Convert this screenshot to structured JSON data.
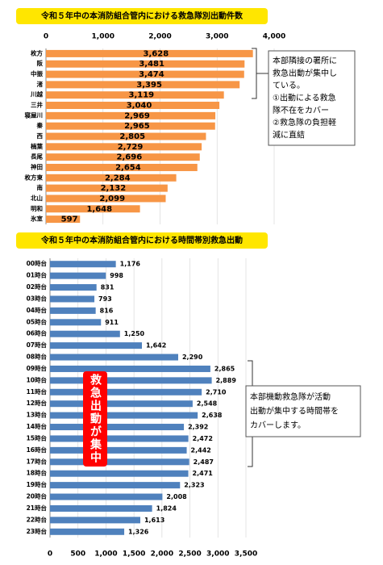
{
  "chart_data": [
    {
      "type": "bar",
      "orientation": "horizontal",
      "title": "令和５年中の本消防組合管内における救急隊別出動件数",
      "categories": [
        "枚方",
        "阪",
        "中振",
        "渚",
        "川越",
        "三井",
        "寝屋川",
        "秦",
        "西",
        "楠葉",
        "長尾",
        "神田",
        "枚方東",
        "南",
        "北山",
        "明和",
        "氷室"
      ],
      "values": [
        3628,
        3481,
        3474,
        3395,
        3119,
        3040,
        2969,
        2965,
        2805,
        2729,
        2696,
        2654,
        2284,
        2132,
        2099,
        1648,
        597
      ],
      "value_labels": [
        "3,628",
        "3,481",
        "3,474",
        "3,395",
        "3,119",
        "3,040",
        "2,969",
        "2,965",
        "2,805",
        "2,729",
        "2,696",
        "2,654",
        "2,284",
        "2,132",
        "2,099",
        "1,648",
        "597"
      ],
      "color": "#f79646",
      "xlim": [
        0,
        4000
      ],
      "xticks": [
        0,
        {
          "value": 1000,
          "label": "1,000"
        },
        {
          "value": 2000,
          "label": "2,000"
        },
        {
          "value": 3000,
          "label": "3,000"
        },
        {
          "value": 4000,
          "label": "4,000"
        }
      ],
      "grid": true,
      "annotation": [
        "本部隣接の署所に",
        "救急出動が集中し",
        "ている。",
        "①出動による救急",
        "隊不在をカバー",
        "②救急隊の負担軽",
        "減に直結"
      ]
    },
    {
      "type": "bar",
      "orientation": "horizontal",
      "title": "令和５年中の本消防組合管内における時間帯別救急出動",
      "categories": [
        "00時台",
        "01時台",
        "02時台",
        "03時台",
        "04時台",
        "05時台",
        "06時台",
        "07時台",
        "08時台",
        "09時台",
        "10時台",
        "11時台",
        "12時台",
        "13時台",
        "14時台",
        "15時台",
        "16時台",
        "17時台",
        "18時台",
        "19時台",
        "20時台",
        "21時台",
        "22時台",
        "23時台"
      ],
      "values": [
        1176,
        998,
        831,
        793,
        816,
        911,
        1250,
        1642,
        2290,
        2865,
        2889,
        2710,
        2548,
        2638,
        2392,
        2472,
        2442,
        2487,
        2471,
        2323,
        2008,
        1824,
        1613,
        1326
      ],
      "value_labels": [
        "1,176",
        "998",
        "831",
        "793",
        "816",
        "911",
        "1,250",
        "1,642",
        "2,290",
        "2,865",
        "2,889",
        "2,710",
        "2,548",
        "2,638",
        "2,392",
        "2,472",
        "2,442",
        "2,487",
        "2,471",
        "2,323",
        "2,008",
        "1,824",
        "1,613",
        "1,326"
      ],
      "color": "#4f81bd",
      "xlim": [
        0,
        3500
      ],
      "xticks": [
        0,
        500,
        {
          "value": 1000,
          "label": "1,000"
        },
        {
          "value": 1500,
          "label": "1,500"
        },
        {
          "value": 2000,
          "label": "2,000"
        },
        {
          "value": 2500,
          "label": "2,500"
        },
        {
          "value": 3000,
          "label": "3,000"
        },
        {
          "value": 3500,
          "label": "3,500"
        }
      ],
      "grid": true,
      "callout": "救急出動が集中",
      "annotation": [
        "本部機動救急隊が活動",
        "出動が集中する時間帯を",
        "カバーします。"
      ]
    }
  ]
}
